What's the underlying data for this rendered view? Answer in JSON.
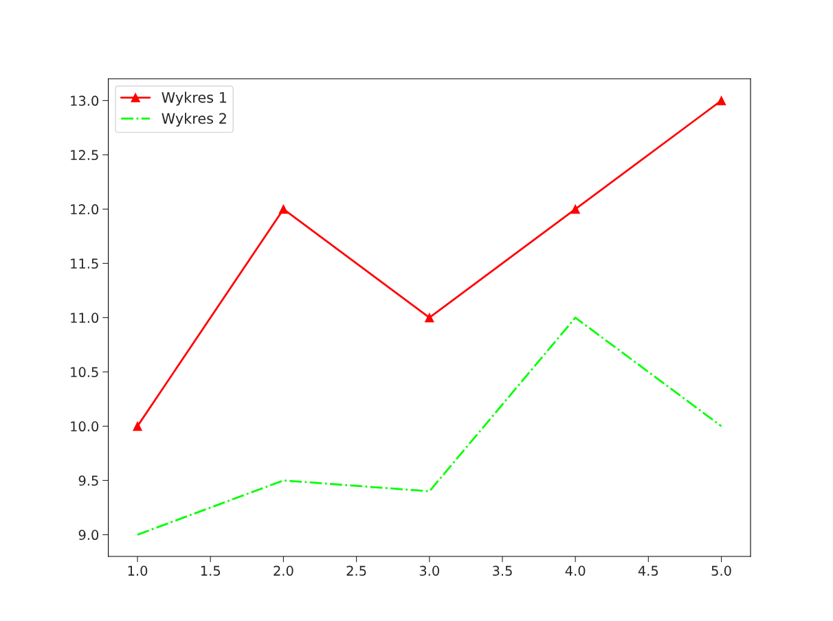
{
  "chart_data": {
    "type": "line",
    "x": [
      1,
      2,
      3,
      4,
      5
    ],
    "series": [
      {
        "name": "Wykres 1",
        "color": "#ff0000",
        "values": [
          10,
          12,
          11,
          12,
          13
        ],
        "marker": "triangle",
        "line_style": "solid"
      },
      {
        "name": "Wykres 2",
        "color": "#00ff00",
        "values": [
          9,
          9.5,
          9.4,
          11,
          10
        ],
        "marker": "none",
        "line_style": "dashdot"
      }
    ],
    "xlim": [
      0.8,
      5.2
    ],
    "xticks": [
      {
        "value": 1,
        "label": "1.0"
      },
      {
        "value": 1.5,
        "label": "1.5"
      },
      {
        "value": 2,
        "label": "2.0"
      },
      {
        "value": 2.5,
        "label": "2.5"
      },
      {
        "value": 3,
        "label": "3.0"
      },
      {
        "value": 3.5,
        "label": "3.5"
      },
      {
        "value": 4,
        "label": "4.0"
      },
      {
        "value": 4.5,
        "label": "4.5"
      },
      {
        "value": 5,
        "label": "5.0"
      }
    ],
    "ylim": [
      8.8,
      13.2
    ],
    "yticks": [
      {
        "value": 9,
        "label": "9.0"
      },
      {
        "value": 9.5,
        "label": "9.5"
      },
      {
        "value": 10,
        "label": "10.0"
      },
      {
        "value": 10.5,
        "label": "10.5"
      },
      {
        "value": 11,
        "label": "11.0"
      },
      {
        "value": 11.5,
        "label": "11.5"
      },
      {
        "value": 12,
        "label": "12.0"
      },
      {
        "value": 12.5,
        "label": "12.5"
      },
      {
        "value": 13,
        "label": "13.0"
      }
    ],
    "grid": false,
    "legend": "top left"
  }
}
